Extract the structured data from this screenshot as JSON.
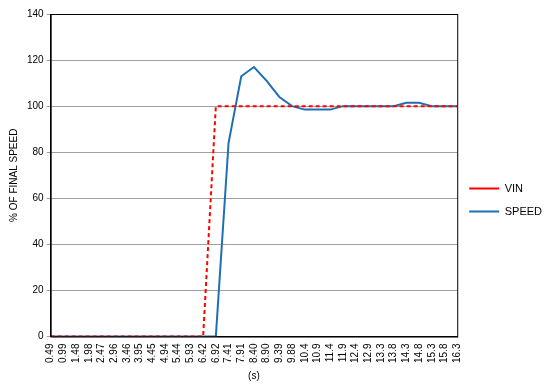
{
  "chart_data": {
    "type": "line",
    "x_label": "(s)",
    "y_label": "% OF FINAL SPEED",
    "categories": [
      "0.49",
      "0.99",
      "1.48",
      "1.98",
      "2.47",
      "2.96",
      "3.46",
      "3.95",
      "4.45",
      "4.94",
      "5.44",
      "5.93",
      "6.42",
      "6.92",
      "7.41",
      "7.91",
      "8.40",
      "8.90",
      "9.39",
      "9.88",
      "10.4",
      "10.9",
      "11.4",
      "11.9",
      "12.4",
      "12.9",
      "13.3",
      "13.8",
      "14.3",
      "14.8",
      "15.3",
      "15.8",
      "16.3"
    ],
    "series": [
      {
        "name": "VIN",
        "color": "#ff0000",
        "line_style": "dashed",
        "values": [
          0,
          0,
          0,
          0,
          0,
          0,
          0,
          0,
          0,
          0,
          0,
          0,
          0,
          100,
          100,
          100,
          100,
          100,
          100,
          100,
          100,
          100,
          100,
          100,
          100,
          100,
          100,
          100,
          100,
          100,
          100,
          100,
          100
        ]
      },
      {
        "name": "SPEED",
        "color": "#1f6fb4",
        "line_style": "solid",
        "values": [
          0,
          0,
          0,
          0,
          0,
          0,
          0,
          0,
          0,
          0,
          0,
          0,
          0,
          0,
          84,
          113,
          117,
          111,
          104,
          100,
          98.5,
          98.5,
          98.5,
          100,
          100,
          100,
          100,
          100,
          101.5,
          101.5,
          100,
          100,
          100
        ]
      }
    ],
    "ylim": [
      0,
      140
    ],
    "yticks": [
      0,
      20,
      40,
      60,
      80,
      100,
      120,
      140
    ],
    "grid": true,
    "legend": "right"
  }
}
